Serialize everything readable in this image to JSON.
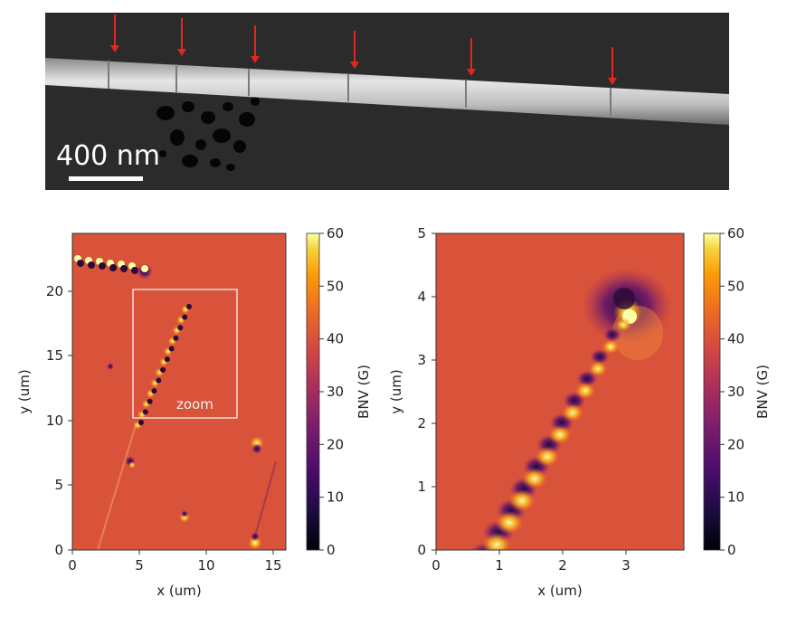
{
  "sem_panel": {
    "scale_bar_label": "400 nm",
    "arrow_color": "#e0281e",
    "arrow_count": 6
  },
  "left_map": {
    "xlabel": "x (um)",
    "ylabel": "y (um)",
    "x_ticks": [
      "0",
      "5",
      "10",
      "15"
    ],
    "y_ticks": [
      "0",
      "5",
      "10",
      "15",
      "20"
    ],
    "xlim": [
      0,
      16
    ],
    "ylim": [
      0,
      24.5
    ],
    "zoom_label": "zoom",
    "colorbar": {
      "label": "BNV (G)",
      "ticks": [
        "0",
        "10",
        "20",
        "30",
        "40",
        "50",
        "60"
      ],
      "range": [
        0,
        60
      ]
    }
  },
  "right_map": {
    "xlabel": "x (um)",
    "ylabel": "y (um)",
    "x_ticks": [
      "0",
      "1",
      "2",
      "3"
    ],
    "y_ticks": [
      "0",
      "1",
      "2",
      "3",
      "4",
      "5"
    ],
    "xlim": [
      0,
      3.9
    ],
    "ylim": [
      0,
      5
    ],
    "colorbar": {
      "label": "BNV (G)",
      "ticks": [
        "0",
        "10",
        "20",
        "30",
        "40",
        "50",
        "60"
      ],
      "range": [
        0,
        60
      ]
    }
  },
  "colors": {
    "background_field": "#d9533a",
    "colormap": "inferno"
  }
}
